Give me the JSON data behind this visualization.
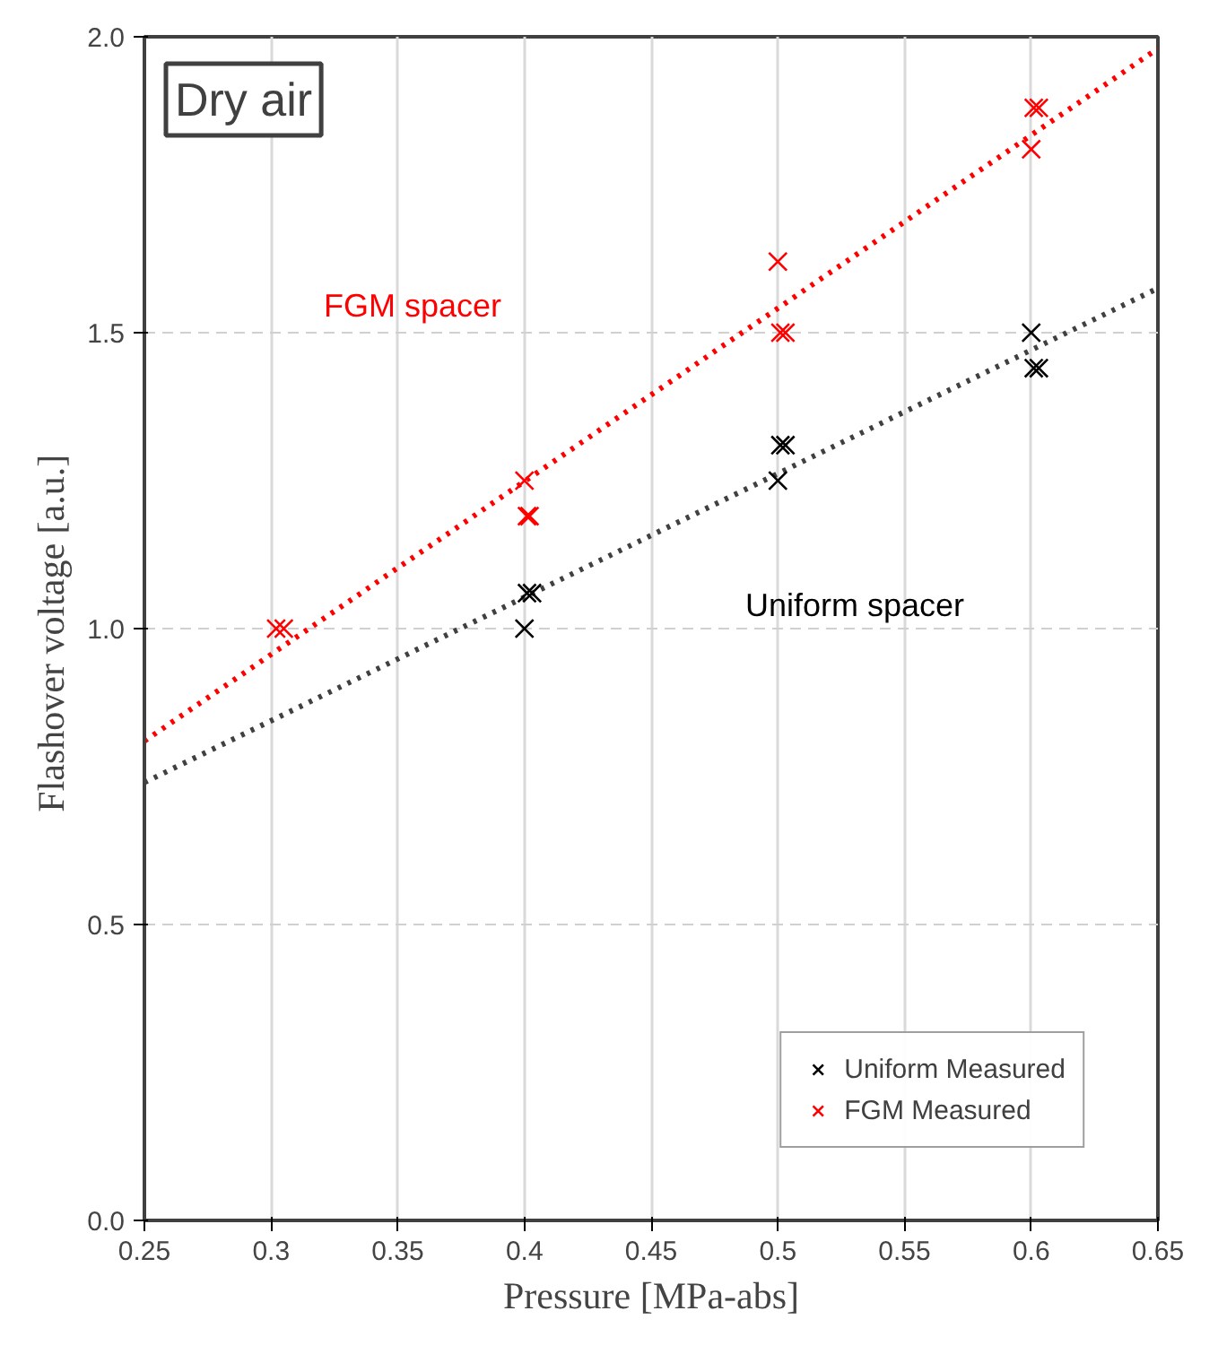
{
  "chart_data": {
    "type": "scatter",
    "xlabel": "Pressure [MPa-abs]",
    "ylabel": "Flashover voltage  [a.u.]",
    "xlim": [
      0.25,
      0.65
    ],
    "xticks": [
      0.25,
      0.3,
      0.35,
      0.4,
      0.45,
      0.5,
      0.55,
      0.6,
      0.65
    ],
    "ylim": [
      0,
      2
    ],
    "yticks": [
      {
        "value": 0,
        "label": "0.0"
      },
      0.5,
      {
        "value": 1,
        "label": "1.0"
      },
      1.5,
      {
        "value": 2,
        "label": "2.0"
      }
    ],
    "grid": true,
    "legend": "bottom right",
    "marker": "cross",
    "annotations": [
      "Dry air",
      "FGM spacer",
      "Uniform spacer"
    ],
    "series": [
      {
        "type": "line",
        "color": "#404040",
        "line_style": "dotted",
        "marker": "none",
        "x": [
          0.25,
          0.65
        ],
        "values": [
          0.74,
          1.575
        ]
      },
      {
        "type": "line",
        "color": "#ff0000",
        "line_style": "dotted",
        "marker": "none",
        "x": [
          0.25,
          0.65
        ],
        "values": [
          0.81,
          1.98
        ]
      },
      {
        "name": "Uniform Measured",
        "color": "#000000",
        "x": [
          0.4,
          0.401,
          0.403,
          0.5,
          0.501,
          0.503,
          0.6,
          0.601,
          0.603
        ],
        "values": [
          1.0,
          1.06,
          1.06,
          1.25,
          1.31,
          1.31,
          1.5,
          1.44,
          1.44
        ]
      },
      {
        "name": "FGM Measured",
        "color": "#ff0000",
        "x": [
          0.302,
          0.305,
          0.4,
          0.401,
          0.402,
          0.5,
          0.501,
          0.503,
          0.6,
          0.601,
          0.603
        ],
        "values": [
          1.0,
          1.0,
          1.25,
          1.19,
          1.19,
          1.62,
          1.5,
          1.5,
          1.81,
          1.88,
          1.88
        ]
      }
    ]
  }
}
